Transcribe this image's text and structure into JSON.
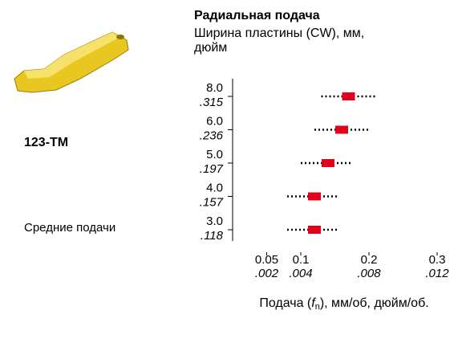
{
  "chart_data": {
    "type": "range",
    "title": "Радиальная подача",
    "subtitle_lines": [
      "Ширина пластины (CW), мм,",
      "дюйм"
    ],
    "product": "123-TM",
    "note": "Средние подачи",
    "categories": [
      "8.0",
      "6.0",
      "5.0",
      "4.0",
      "3.0"
    ],
    "category_inch_labels": [
      ".315",
      ".236",
      ".197",
      ".157",
      ".118"
    ],
    "values": [
      0.17,
      0.16,
      0.14,
      0.12,
      0.12
    ],
    "low": [
      0.13,
      0.12,
      0.1,
      0.08,
      0.08
    ],
    "high": [
      0.21,
      0.2,
      0.175,
      0.155,
      0.155
    ],
    "color": "#e3001b",
    "xlim": [
      0,
      0.33
    ],
    "xticks": [
      0.05,
      0.1,
      0.2,
      0.3
    ],
    "xtick_inch_labels": [
      ".002",
      ".004",
      ".008",
      ".012"
    ],
    "xlabel_parts": [
      "Подача (",
      "f",
      "n",
      "), мм/об, дюйм/об."
    ]
  }
}
